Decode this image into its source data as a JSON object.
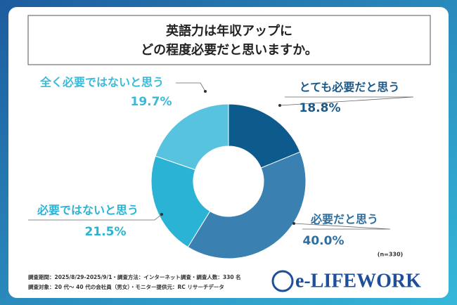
{
  "chart_data": {
    "type": "donut",
    "title_lines": [
      "英語力は年収アップに",
      "どの程度必要だと思いますか。"
    ],
    "categories": [
      "とても必要だと思う",
      "必要だと思う",
      "必要ではないと思う",
      "全く必要ではないと思う"
    ],
    "values": [
      18.8,
      40.0,
      21.5,
      19.7
    ],
    "value_labels": [
      "18.8%",
      "40.0%",
      "21.5%",
      "19.7%"
    ],
    "colors": [
      "#0d5a8c",
      "#3a80b1",
      "#2ab3d4",
      "#57c3de"
    ],
    "sample_note": "(n=330)",
    "footnotes": [
      "調査期間：2025/8/29-2025/9/1・調査方法：インターネット調査・調査人数：330 名",
      "調査対象：20 代～ 40 代の会社員（男女）・モニター提供元：RC リサーチデータ"
    ],
    "logo": "e-LIFEWORK"
  }
}
